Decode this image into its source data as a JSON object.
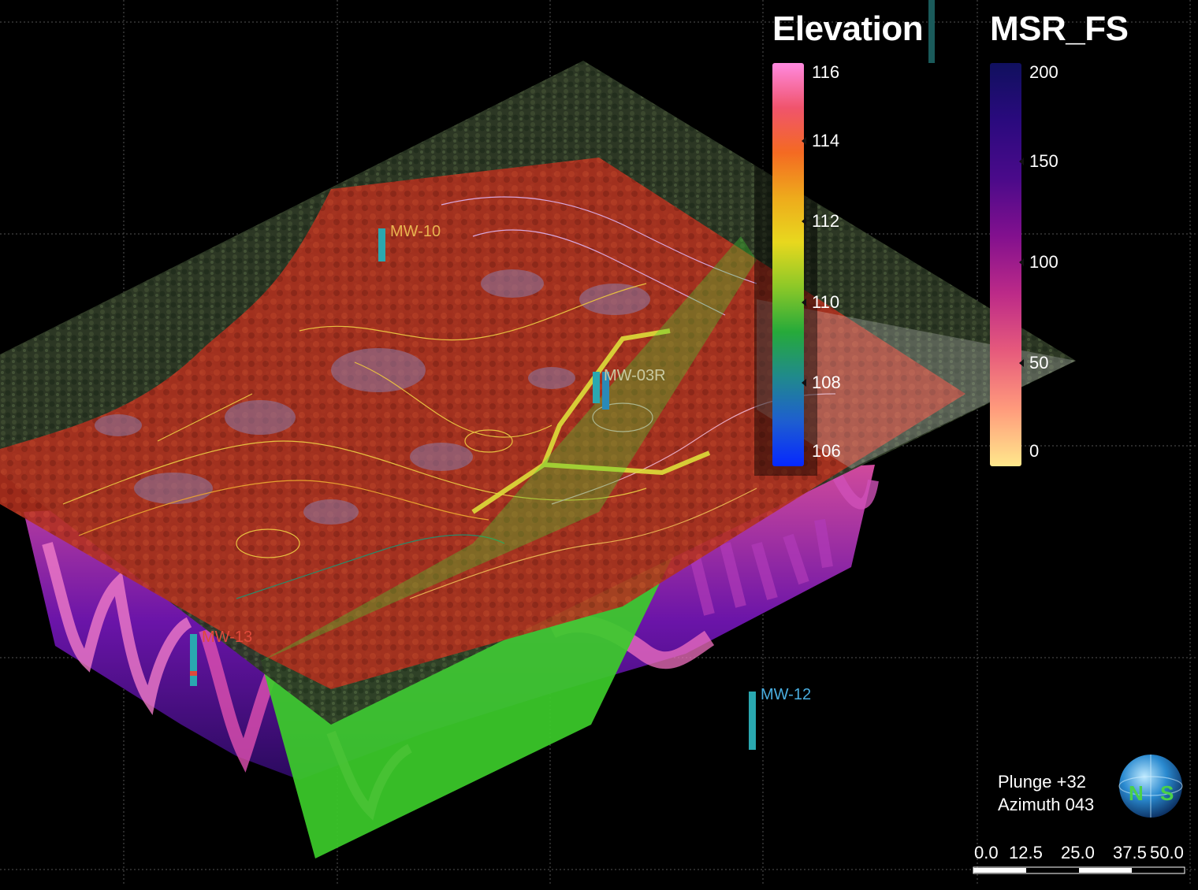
{
  "legends": {
    "elevation": {
      "title": "Elevation",
      "ticks": [
        "116",
        "114",
        "112",
        "110",
        "108",
        "106"
      ],
      "colors": [
        "#ff8ae0",
        "#f0546c",
        "#f46a22",
        "#eeaa1c",
        "#e8d81e",
        "#8cc828",
        "#26aa3a",
        "#208a8c",
        "#1e5ed0",
        "#0628ff"
      ]
    },
    "msr_fs": {
      "title": "MSR_FS",
      "ticks": [
        "200",
        "150",
        "100",
        "50",
        "0"
      ],
      "colors": [
        "#10105e",
        "#2a0a7e",
        "#4a0a8a",
        "#82108e",
        "#bc2a88",
        "#e65a7c",
        "#ff9a7c",
        "#ffe88c"
      ]
    }
  },
  "wells": [
    {
      "name": "MW-10",
      "color": "#e8b450"
    },
    {
      "name": "MW-03R",
      "color": "#c9c9a0"
    },
    {
      "name": "MW-13",
      "color": "#e04a3a"
    },
    {
      "name": "MW-12",
      "color": "#4aaee0"
    }
  ],
  "orientation": {
    "plunge": "Plunge +32",
    "azimuth": "Azimuth 043"
  },
  "compass": {
    "letters": [
      "N",
      "S"
    ]
  },
  "scale_bar": {
    "labels": [
      "0.0",
      "12.5",
      "25.0",
      "37.5",
      "50.0"
    ]
  }
}
